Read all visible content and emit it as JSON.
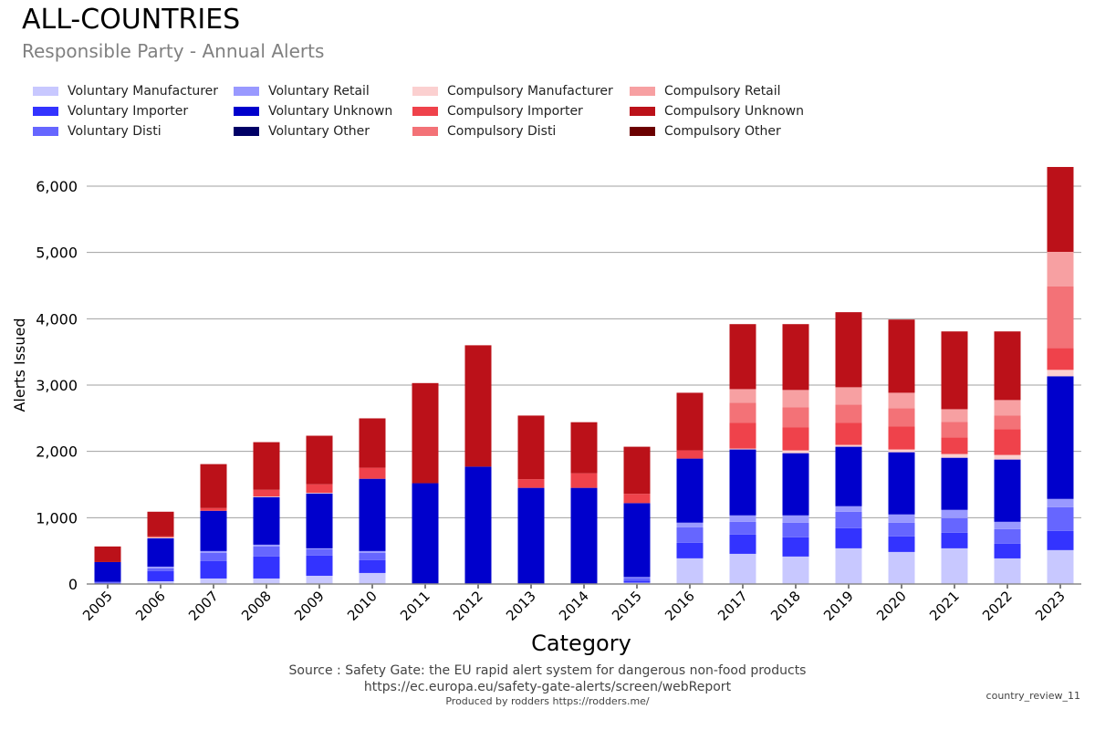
{
  "header": {
    "title": "ALL-COUNTRIES",
    "subtitle": "Responsible Party - Annual Alerts"
  },
  "footer": {
    "source": "Source : Safety Gate: the EU rapid alert system for dangerous non-food products",
    "url": "https://ec.europa.eu/safety-gate-alerts/screen/webReport",
    "credit": "Produced by rodders https://rodders.me/",
    "tag": "country_review_11"
  },
  "chart_data": {
    "type": "bar",
    "stacked": true,
    "title": "Responsible Party - Annual Alerts",
    "xlabel": "Category",
    "ylabel": "Alerts Issued",
    "ylim": [
      0,
      6500
    ],
    "yticks": [
      0,
      1000,
      2000,
      3000,
      4000,
      5000,
      6000
    ],
    "ytick_labels": [
      "0",
      "1,000",
      "2,000",
      "3,000",
      "4,000",
      "5,000",
      "6,000"
    ],
    "grid": true,
    "legend_placement": "top-left",
    "categories": [
      "2005",
      "2006",
      "2007",
      "2008",
      "2009",
      "2010",
      "2011",
      "2012",
      "2013",
      "2014",
      "2015",
      "2016",
      "2017",
      "2018",
      "2019",
      "2020",
      "2021",
      "2022",
      "2023"
    ],
    "series": [
      {
        "name": "Voluntary Manufacturer",
        "color": "#c8c8ff",
        "values": [
          5,
          41,
          83,
          83,
          124,
          166,
          0,
          0,
          0,
          0,
          20,
          387,
          455,
          414,
          538,
          483,
          538,
          386,
          511
        ]
      },
      {
        "name": "Voluntary Importer",
        "color": "#3333ff",
        "values": [
          10,
          152,
          262,
          331,
          304,
          193,
          0,
          0,
          0,
          0,
          30,
          234,
          290,
          290,
          304,
          235,
          235,
          221,
          289
        ]
      },
      {
        "name": "Voluntary Disti",
        "color": "#6666ff",
        "values": [
          17,
          42,
          124,
          152,
          96,
          110,
          0,
          0,
          0,
          0,
          40,
          235,
          193,
          221,
          248,
          207,
          221,
          221,
          359
        ]
      },
      {
        "name": "Voluntary Retail",
        "color": "#9999ff",
        "values": [
          0,
          27,
          28,
          27,
          14,
          28,
          0,
          0,
          0,
          0,
          15,
          69,
          97,
          110,
          83,
          124,
          124,
          110,
          124
        ]
      },
      {
        "name": "Voluntary Unknown",
        "color": "#0000cc",
        "values": [
          299,
          428,
          607,
          718,
          828,
          1090,
          1520,
          1770,
          1450,
          1450,
          1115,
          966,
          994,
          938,
          897,
          938,
          786,
          939,
          1850
        ]
      },
      {
        "name": "Voluntary Other",
        "color": "#000066",
        "values": [
          0,
          0,
          0,
          0,
          0,
          0,
          0,
          0,
          0,
          0,
          0,
          0,
          0,
          0,
          0,
          0,
          0,
          0,
          0
        ]
      },
      {
        "name": "Compulsory Manufacturer",
        "color": "#fbd0d0",
        "values": [
          0,
          14,
          0,
          10,
          10,
          0,
          0,
          0,
          0,
          0,
          0,
          0,
          13,
          42,
          28,
          42,
          56,
          69,
          96
        ]
      },
      {
        "name": "Compulsory Importer",
        "color": "#ef424b",
        "values": [
          0,
          14,
          41,
          100,
          128,
          166,
          0,
          0,
          130,
          220,
          140,
          124,
          387,
          345,
          331,
          345,
          248,
          386,
          331
        ]
      },
      {
        "name": "Compulsory Disti",
        "color": "#f37277",
        "values": [
          0,
          0,
          0,
          0,
          0,
          0,
          0,
          0,
          0,
          0,
          0,
          0,
          303,
          303,
          276,
          276,
          235,
          207,
          926
        ]
      },
      {
        "name": "Compulsory Retail",
        "color": "#f7a0a2",
        "values": [
          0,
          0,
          0,
          0,
          0,
          0,
          0,
          0,
          0,
          0,
          0,
          0,
          207,
          263,
          262,
          234,
          193,
          235,
          523
        ]
      },
      {
        "name": "Compulsory Unknown",
        "color": "#bb1119",
        "values": [
          235,
          372,
          663,
          718,
          732,
          745,
          1510,
          1830,
          960,
          770,
          710,
          869,
          980,
          993,
          1132,
          1104,
          1173,
          1035,
          1280
        ]
      },
      {
        "name": "Compulsory Other",
        "color": "#6b0000",
        "values": [
          0,
          0,
          0,
          0,
          0,
          0,
          0,
          0,
          0,
          0,
          0,
          0,
          0,
          0,
          0,
          0,
          0,
          0,
          0
        ]
      }
    ]
  }
}
